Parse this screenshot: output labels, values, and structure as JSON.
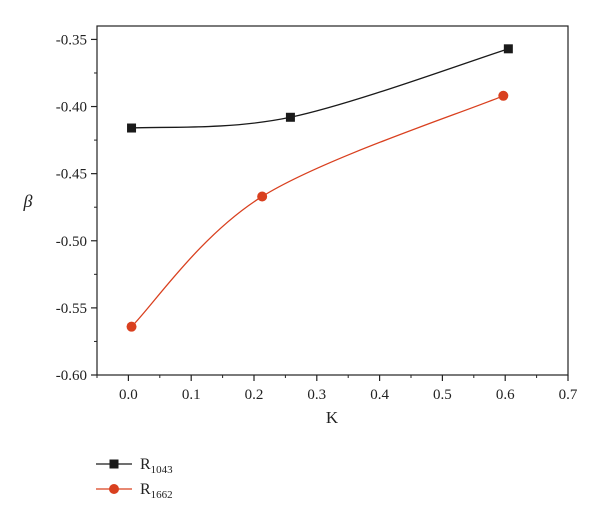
{
  "chart_data": {
    "type": "line",
    "xlabel": "K",
    "ylabel": "β",
    "xlim": [
      -0.05,
      0.7
    ],
    "ylim": [
      -0.6,
      -0.34
    ],
    "xticks": [
      0.0,
      0.1,
      0.2,
      0.3,
      0.4,
      0.5,
      0.6,
      0.7
    ],
    "xtick_labels": [
      "0.0",
      "0.1",
      "0.2",
      "0.3",
      "0.4",
      "0.5",
      "0.6",
      "0.7"
    ],
    "yticks": [
      -0.6,
      -0.55,
      -0.5,
      -0.45,
      -0.4,
      -0.35
    ],
    "ytick_labels": [
      "-0.60",
      "-0.55",
      "-0.50",
      "-0.45",
      "-0.40",
      "-0.35"
    ],
    "grid": false,
    "legend_position": "bottom-left, outside plot",
    "series": [
      {
        "name": "R",
        "name_sub": "1043",
        "marker": "square",
        "color": "#1a1a1a",
        "x": [
          0.005,
          0.258,
          0.605
        ],
        "y": [
          -0.416,
          -0.408,
          -0.357
        ]
      },
      {
        "name": "R",
        "name_sub": "1662",
        "marker": "circle",
        "color": "#d9401f",
        "x": [
          0.005,
          0.213,
          0.597
        ],
        "y": [
          -0.564,
          -0.467,
          -0.392
        ]
      }
    ]
  }
}
